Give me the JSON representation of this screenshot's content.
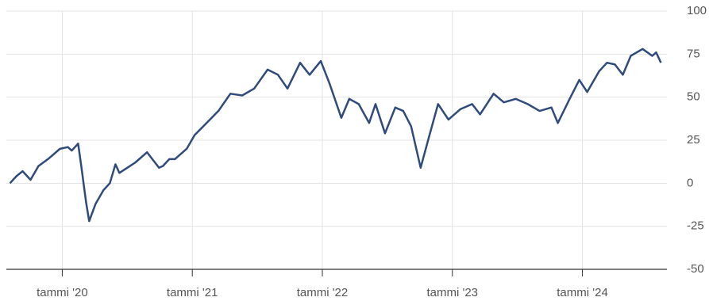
{
  "chart_data": {
    "type": "line",
    "color": "#2f4b7c",
    "grid": true,
    "xlim": [
      2019.57,
      2024.65
    ],
    "xticks": [
      {
        "value": 2020,
        "label": "tammi '20"
      },
      {
        "value": 2021,
        "label": "tammi '21"
      },
      {
        "value": 2022,
        "label": "tammi '22"
      },
      {
        "value": 2023,
        "label": "tammi '23"
      },
      {
        "value": 2024,
        "label": "tammi '24"
      }
    ],
    "ylim": [
      -50,
      100
    ],
    "yticks": [
      -50,
      -25,
      0,
      25,
      50,
      75,
      100
    ],
    "x": [
      2019.598,
      2019.646,
      2019.695,
      2019.756,
      2019.817,
      2019.89,
      2019.982,
      2020.043,
      2020.073,
      2020.122,
      2020.146,
      2020.183,
      2020.207,
      2020.256,
      2020.317,
      2020.366,
      2020.409,
      2020.439,
      2020.5,
      2020.561,
      2020.652,
      2020.744,
      2020.774,
      2020.823,
      2020.866,
      2020.957,
      2021.018,
      2021.11,
      2021.201,
      2021.293,
      2021.384,
      2021.476,
      2021.579,
      2021.659,
      2021.732,
      2021.829,
      2021.902,
      2021.988,
      2022.055,
      2022.146,
      2022.207,
      2022.28,
      2022.36,
      2022.409,
      2022.482,
      2022.561,
      2022.622,
      2022.683,
      2022.756,
      2022.817,
      2022.89,
      2022.97,
      2023.061,
      2023.152,
      2023.213,
      2023.317,
      2023.396,
      2023.488,
      2023.579,
      2023.671,
      2023.762,
      2023.811,
      2023.902,
      2023.976,
      2024.037,
      2024.128,
      2024.189,
      2024.25,
      2024.311,
      2024.372,
      2024.463,
      2024.537,
      2024.567,
      2024.604
    ],
    "values": [
      0,
      4,
      7,
      2,
      10,
      14,
      20,
      21,
      19,
      23,
      10,
      -11,
      -22,
      -12,
      -4,
      0,
      11,
      6,
      9,
      12,
      18,
      9,
      10,
      14,
      14,
      20,
      28,
      35,
      42,
      52,
      51,
      55,
      66,
      63,
      55,
      70,
      63,
      71,
      58,
      38,
      49,
      46,
      35,
      46,
      29,
      44,
      42,
      33,
      9,
      26,
      46,
      37,
      43,
      46,
      40,
      52,
      47,
      49,
      46,
      42,
      44,
      35,
      49,
      60,
      53,
      65,
      70,
      69,
      63,
      74,
      78,
      74,
      76,
      70
    ]
  }
}
